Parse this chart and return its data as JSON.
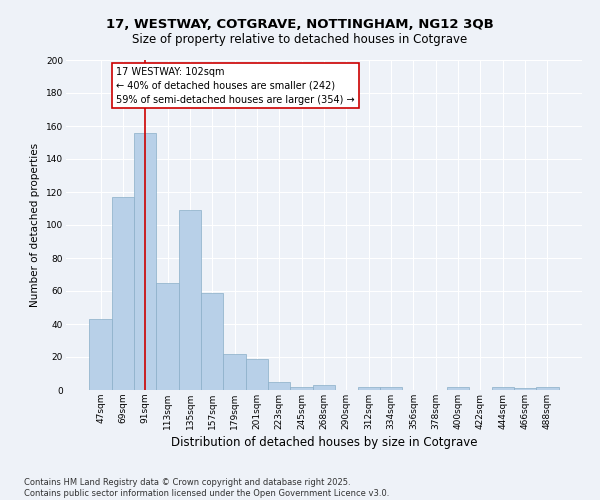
{
  "title": "17, WESTWAY, COTGRAVE, NOTTINGHAM, NG12 3QB",
  "subtitle": "Size of property relative to detached houses in Cotgrave",
  "xlabel": "Distribution of detached houses by size in Cotgrave",
  "ylabel": "Number of detached properties",
  "categories": [
    "47sqm",
    "69sqm",
    "91sqm",
    "113sqm",
    "135sqm",
    "157sqm",
    "179sqm",
    "201sqm",
    "223sqm",
    "245sqm",
    "268sqm",
    "290sqm",
    "312sqm",
    "334sqm",
    "356sqm",
    "378sqm",
    "400sqm",
    "422sqm",
    "444sqm",
    "466sqm",
    "488sqm"
  ],
  "values": [
    43,
    117,
    156,
    65,
    109,
    59,
    22,
    19,
    5,
    2,
    3,
    0,
    2,
    2,
    0,
    0,
    2,
    0,
    2,
    1,
    2
  ],
  "bar_color": "#b8d0e8",
  "bar_edge_color": "#8aaec8",
  "marker_bin_index": 2,
  "marker_line_color": "#cc0000",
  "annotation_text": "17 WESTWAY: 102sqm\n← 40% of detached houses are smaller (242)\n59% of semi-detached houses are larger (354) →",
  "annotation_box_color": "#ffffff",
  "annotation_box_edge": "#cc0000",
  "footer": "Contains HM Land Registry data © Crown copyright and database right 2025.\nContains public sector information licensed under the Open Government Licence v3.0.",
  "bg_color": "#eef2f8",
  "grid_color": "#ffffff",
  "ylim": [
    0,
    200
  ],
  "yticks": [
    0,
    20,
    40,
    60,
    80,
    100,
    120,
    140,
    160,
    180,
    200
  ],
  "title_fontsize": 9.5,
  "subtitle_fontsize": 8.5,
  "ylabel_fontsize": 7.5,
  "xlabel_fontsize": 8.5,
  "tick_fontsize": 6.5,
  "footer_fontsize": 6.0,
  "annot_fontsize": 7.0
}
